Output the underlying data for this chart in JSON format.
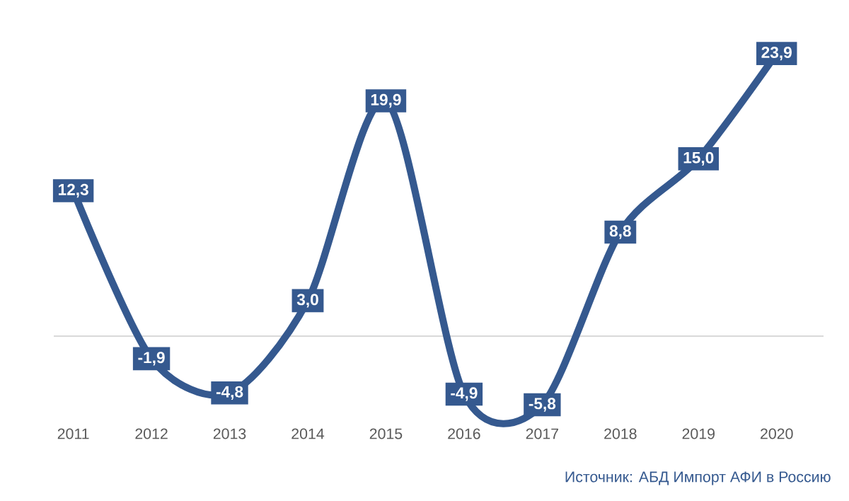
{
  "chart_data": {
    "type": "line",
    "categories": [
      "2011",
      "2012",
      "2013",
      "2014",
      "2015",
      "2016",
      "2017",
      "2018",
      "2019",
      "2020"
    ],
    "values": [
      12.3,
      -1.9,
      -4.8,
      3.0,
      19.9,
      -4.9,
      -5.8,
      8.8,
      15.0,
      23.9
    ],
    "value_labels": [
      "12,3",
      "-1,9",
      "-4,8",
      "3,0",
      "19,9",
      "-4,9",
      "-5,8",
      "8,8",
      "15,0",
      "23,9"
    ],
    "color": "#35598f",
    "tick_labels": "x",
    "line_style": "solid",
    "marker": "square",
    "grid": false,
    "annotations": [
      "Источник: АБД Импорт АФИ в Россию"
    ]
  }
}
